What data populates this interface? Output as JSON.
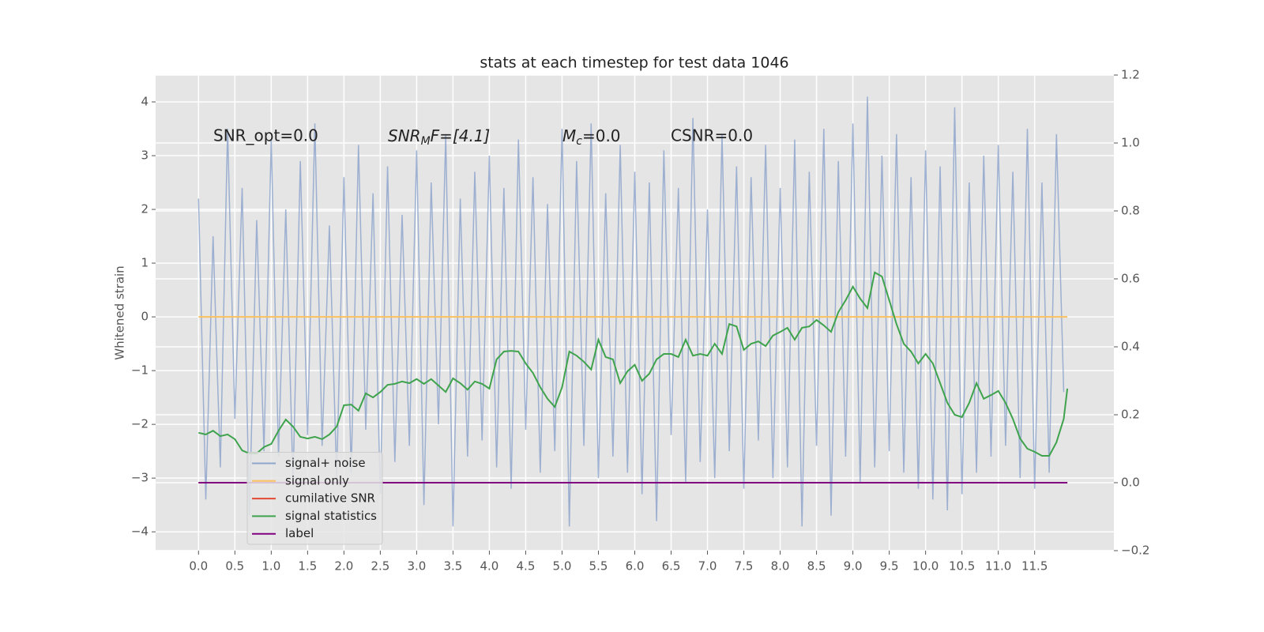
{
  "chart_data": {
    "type": "line",
    "title": "stats at each timestep for test data 1046",
    "ylabel": "Whitened strain",
    "annotations": [
      "SNR_opt=0.0",
      {
        "base": "SNR",
        "sub": "M",
        "rest": "F=[4.1]"
      },
      {
        "base": "M",
        "sub": "c",
        "rest": "=0.0"
      },
      "CSNR=0.0"
    ],
    "xlim": [
      -0.59,
      12.59
    ],
    "ylim": [
      -4.35,
      4.5
    ],
    "y2lim": [
      -0.2,
      1.2
    ],
    "xticks": [
      {
        "value": 0,
        "label": "0.0"
      },
      0.5,
      {
        "value": 1,
        "label": "1.0"
      },
      1.5,
      {
        "value": 2,
        "label": "2.0"
      },
      2.5,
      {
        "value": 3,
        "label": "3.0"
      },
      3.5,
      {
        "value": 4,
        "label": "4.0"
      },
      4.5,
      {
        "value": 5,
        "label": "5.0"
      },
      5.5,
      {
        "value": 6,
        "label": "6.0"
      },
      6.5,
      {
        "value": 7,
        "label": "7.0"
      },
      7.5,
      {
        "value": 8,
        "label": "8.0"
      },
      8.5,
      {
        "value": 9,
        "label": "9.0"
      },
      9.5,
      {
        "value": 10,
        "label": "10.0"
      },
      10.5,
      {
        "value": 11,
        "label": "11.0"
      },
      11.5
    ],
    "yticks": [
      {
        "value": -4,
        "label": "−4"
      },
      {
        "value": -3,
        "label": "−3"
      },
      {
        "value": -2,
        "label": "−2"
      },
      {
        "value": -1,
        "label": "−1"
      },
      0,
      1,
      2,
      3,
      4
    ],
    "y2ticks": [
      {
        "value": -0.2,
        "label": "−0.2"
      },
      {
        "value": 0,
        "label": "0.0"
      },
      0.2,
      0.4,
      0.6,
      0.8,
      {
        "value": 1,
        "label": "1.0"
      },
      1.2
    ],
    "grid": true,
    "legend": "lower left",
    "series": [
      {
        "name": "signal+ noise",
        "color": "#8fa6cc",
        "x": [
          0,
          0.1,
          0.2,
          0.3,
          0.4,
          0.5,
          0.6,
          0.7,
          0.8,
          0.9,
          1,
          1.1,
          1.2,
          1.3,
          1.4,
          1.5,
          1.6,
          1.7,
          1.8,
          1.9,
          2,
          2.1,
          2.2,
          2.3,
          2.4,
          2.5,
          2.6,
          2.7,
          2.8,
          2.9,
          3,
          3.1,
          3.2,
          3.3,
          3.4,
          3.5,
          3.6,
          3.7,
          3.8,
          3.9,
          4,
          4.1,
          4.2,
          4.3,
          4.4,
          4.5,
          4.6,
          4.7,
          4.8,
          4.9,
          5,
          5.1,
          5.2,
          5.3,
          5.4,
          5.5,
          5.6,
          5.7,
          5.8,
          5.9,
          6,
          6.1,
          6.2,
          6.3,
          6.4,
          6.5,
          6.6,
          6.7,
          6.8,
          6.9,
          7,
          7.1,
          7.2,
          7.3,
          7.4,
          7.5,
          7.6,
          7.7,
          7.8,
          7.9,
          8,
          8.1,
          8.2,
          8.3,
          8.4,
          8.5,
          8.6,
          8.7,
          8.8,
          8.9,
          9,
          9.1,
          9.2,
          9.3,
          9.4,
          9.5,
          9.6,
          9.7,
          9.8,
          9.9,
          10,
          10.1,
          10.2,
          10.3,
          10.4,
          10.5,
          10.6,
          10.7,
          10.8,
          10.9,
          11,
          11.1,
          11.2,
          11.3,
          11.4,
          11.5,
          11.6,
          11.7,
          11.8,
          11.9
        ],
        "values": [
          2.2,
          -3.4,
          1.5,
          -2.8,
          3.5,
          -1.9,
          2.4,
          -3.7,
          1.8,
          -2.5,
          3.3,
          -2.6,
          2.0,
          -3.1,
          2.9,
          -2.2,
          3.6,
          -2.4,
          1.7,
          -3.0,
          2.6,
          -2.9,
          3.2,
          -2.1,
          2.3,
          -3.3,
          2.8,
          -2.7,
          1.9,
          -2.4,
          3.1,
          -3.5,
          2.5,
          -2.0,
          3.4,
          -3.9,
          2.2,
          -2.6,
          2.7,
          -2.3,
          3.0,
          -2.8,
          2.4,
          -3.2,
          3.3,
          -2.1,
          2.6,
          -2.9,
          2.1,
          -2.5,
          3.5,
          -3.9,
          2.9,
          -2.4,
          3.6,
          -3.0,
          2.3,
          -2.6,
          3.2,
          -2.9,
          2.7,
          -3.3,
          2.5,
          -3.8,
          3.1,
          -2.2,
          2.4,
          -3.1,
          3.7,
          -2.7,
          2.0,
          -3.0,
          3.4,
          -2.5,
          2.8,
          -3.2,
          2.6,
          -2.3,
          3.2,
          -3.0,
          2.4,
          -2.8,
          3.3,
          -3.9,
          2.7,
          -2.4,
          3.5,
          -3.7,
          2.9,
          -2.6,
          3.6,
          -3.1,
          4.1,
          -2.8,
          3.0,
          -2.5,
          3.4,
          -2.9,
          2.6,
          -3.2,
          3.1,
          -3.4,
          2.8,
          -3.6,
          3.9,
          -3.3,
          2.5,
          -2.9,
          3.0,
          -2.6,
          3.2,
          -2.4,
          2.7,
          -3.0,
          3.5,
          -3.2,
          2.5,
          -2.9,
          3.4,
          -1.4
        ]
      },
      {
        "name": "signal only",
        "color": "#fbc15e",
        "x": [
          0,
          11.95
        ],
        "values": [
          0,
          0
        ]
      },
      {
        "name": "cumilative SNR",
        "color": "#e24a33",
        "axis": "y2",
        "x": [
          0,
          11.95
        ],
        "values": [
          0,
          0
        ]
      },
      {
        "name": "signal statistics",
        "color": "#3fa34d",
        "axis": "y2",
        "x": [
          0,
          0.1,
          0.2,
          0.3,
          0.4,
          0.5,
          0.6,
          0.7,
          0.8,
          0.9,
          1,
          1.1,
          1.2,
          1.3,
          1.4,
          1.5,
          1.6,
          1.7,
          1.8,
          1.9,
          2,
          2.1,
          2.2,
          2.3,
          2.4,
          2.5,
          2.6,
          2.7,
          2.8,
          2.9,
          3,
          3.1,
          3.2,
          3.3,
          3.4,
          3.5,
          3.6,
          3.7,
          3.8,
          3.9,
          4,
          4.1,
          4.2,
          4.3,
          4.4,
          4.5,
          4.6,
          4.7,
          4.8,
          4.9,
          5,
          5.1,
          5.2,
          5.3,
          5.4,
          5.5,
          5.6,
          5.7,
          5.8,
          5.9,
          6,
          6.1,
          6.2,
          6.3,
          6.4,
          6.5,
          6.6,
          6.7,
          6.8,
          6.9,
          7,
          7.1,
          7.2,
          7.3,
          7.4,
          7.5,
          7.6,
          7.7,
          7.8,
          7.9,
          8,
          8.1,
          8.2,
          8.3,
          8.4,
          8.5,
          8.6,
          8.7,
          8.8,
          8.9,
          9,
          9.1,
          9.2,
          9.3,
          9.4,
          9.5,
          9.6,
          9.7,
          9.8,
          9.9,
          10,
          10.1,
          10.2,
          10.3,
          10.4,
          10.5,
          10.6,
          10.7,
          10.8,
          10.9,
          11,
          11.1,
          11.2,
          11.3,
          11.4,
          11.5,
          11.6,
          11.7,
          11.8,
          11.9,
          11.95
        ],
        "values": [
          0.147,
          0.142,
          0.153,
          0.137,
          0.142,
          0.128,
          0.095,
          0.086,
          0.086,
          0.105,
          0.114,
          0.153,
          0.186,
          0.165,
          0.135,
          0.13,
          0.135,
          0.128,
          0.142,
          0.165,
          0.228,
          0.23,
          0.212,
          0.263,
          0.251,
          0.267,
          0.288,
          0.291,
          0.298,
          0.293,
          0.305,
          0.291,
          0.305,
          0.286,
          0.267,
          0.307,
          0.293,
          0.274,
          0.298,
          0.291,
          0.277,
          0.363,
          0.386,
          0.388,
          0.386,
          0.351,
          0.323,
          0.281,
          0.247,
          0.223,
          0.281,
          0.386,
          0.374,
          0.356,
          0.333,
          0.421,
          0.37,
          0.363,
          0.293,
          0.328,
          0.347,
          0.3,
          0.321,
          0.363,
          0.379,
          0.379,
          0.37,
          0.421,
          0.374,
          0.379,
          0.374,
          0.409,
          0.379,
          0.467,
          0.46,
          0.391,
          0.409,
          0.416,
          0.402,
          0.433,
          0.444,
          0.456,
          0.421,
          0.456,
          0.46,
          0.479,
          0.463,
          0.444,
          0.502,
          0.537,
          0.577,
          0.542,
          0.514,
          0.619,
          0.607,
          0.537,
          0.467,
          0.409,
          0.386,
          0.351,
          0.379,
          0.351,
          0.293,
          0.235,
          0.2,
          0.193,
          0.235,
          0.293,
          0.247,
          0.258,
          0.27,
          0.235,
          0.188,
          0.13,
          0.1,
          0.091,
          0.079,
          0.079,
          0.119,
          0.188,
          0.277
        ]
      },
      {
        "name": "label",
        "color": "#800080",
        "axis": "y2",
        "x": [
          0,
          11.95
        ],
        "values": [
          0,
          0
        ]
      }
    ]
  }
}
